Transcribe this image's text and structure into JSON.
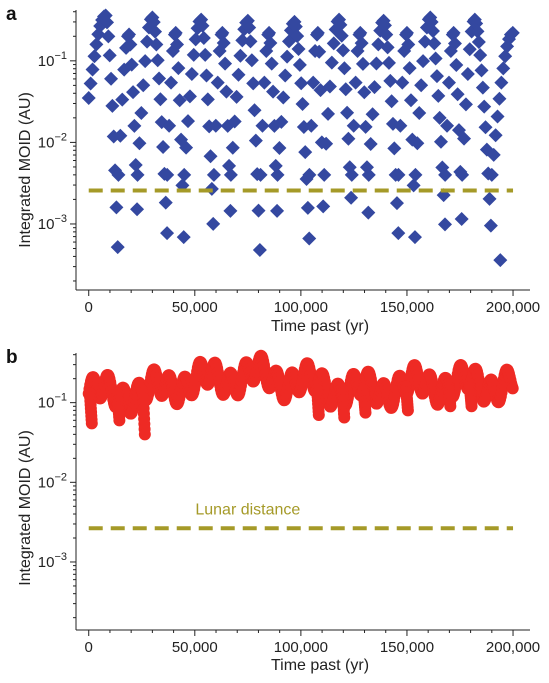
{
  "colors": {
    "panel_a_series": "#3448a0",
    "panel_b_series": "#ee2a24",
    "lunar_line": "#a59a28",
    "axis": "#222222"
  },
  "chart_data": [
    {
      "panel_letter": "a",
      "type": "scatter",
      "xlabel": "Time past (yr)",
      "ylabel": "Integrated MOID (AU)",
      "xlim": [
        -6000,
        208000
      ],
      "ylim": [
        0.000155,
        0.42
      ],
      "y_scale": "log",
      "x_ticks": [
        0,
        50000,
        100000,
        150000,
        200000
      ],
      "x_tick_labels": [
        "0",
        "50,000",
        "100,000",
        "150,000",
        "200,000"
      ],
      "y_ticks": [
        0.001,
        0.01,
        0.1
      ],
      "y_tick_labels": [
        {
          "base": "10",
          "exp": "−3"
        },
        {
          "base": "10",
          "exp": "−2"
        },
        {
          "base": "10",
          "exp": "−1"
        }
      ],
      "marker": "diamond",
      "lunar_distance": 0.00257,
      "lunar_label": "",
      "cycles": [
        {
          "start": 0,
          "peak_time": 8000,
          "peak": 0.36,
          "min_time": 14000,
          "min": 0.00028
        },
        {
          "start": 14000,
          "peak_time": 19000,
          "peak": 0.21,
          "min_time": 23000,
          "min": 0.00095
        },
        {
          "start": 23000,
          "peak_time": 30000,
          "peak": 0.34,
          "min_time": 37000,
          "min": 0.0007
        },
        {
          "start": 37000,
          "peak_time": 41000,
          "peak": 0.22,
          "min_time": 45000,
          "min": 0.0004
        },
        {
          "start": 45000,
          "peak_time": 53000,
          "peak": 0.32,
          "min_time": 59000,
          "min": 0.00058
        },
        {
          "start": 59000,
          "peak_time": 63000,
          "peak": 0.22,
          "min_time": 67000,
          "min": 0.0009
        },
        {
          "start": 67000,
          "peak_time": 75000,
          "peak": 0.31,
          "min_time": 81000,
          "min": 0.00026
        },
        {
          "start": 81000,
          "peak_time": 85000,
          "peak": 0.22,
          "min_time": 89000,
          "min": 0.0009
        },
        {
          "start": 89000,
          "peak_time": 97000,
          "peak": 0.3,
          "min_time": 104000,
          "min": 0.0006
        },
        {
          "start": 104000,
          "peak_time": 108000,
          "peak": 0.22,
          "min_time": 111000,
          "min": 0.00034
        },
        {
          "start": 111000,
          "peak_time": 118000,
          "peak": 0.32,
          "min_time": 124000,
          "min": 0.0013
        },
        {
          "start": 124000,
          "peak_time": 128000,
          "peak": 0.22,
          "min_time": 132000,
          "min": 0.00085
        },
        {
          "start": 132000,
          "peak_time": 139000,
          "peak": 0.31,
          "min_time": 146000,
          "min": 0.0007
        },
        {
          "start": 146000,
          "peak_time": 150000,
          "peak": 0.22,
          "min_time": 154000,
          "min": 0.0004
        },
        {
          "start": 154000,
          "peak_time": 161000,
          "peak": 0.34,
          "min_time": 168000,
          "min": 0.0009
        },
        {
          "start": 168000,
          "peak_time": 172000,
          "peak": 0.22,
          "min_time": 176000,
          "min": 0.0007
        },
        {
          "start": 176000,
          "peak_time": 182000,
          "peak": 0.32,
          "min_time": 190000,
          "min": 0.00055
        },
        {
          "start": 190000,
          "peak_time": 200000,
          "peak": 0.22,
          "min_time": 194000,
          "min": 0.00036
        }
      ]
    },
    {
      "panel_letter": "b",
      "type": "scatter",
      "xlabel": "Time past (yr)",
      "ylabel": "Integrated MOID (AU)",
      "xlim": [
        -6000,
        208000
      ],
      "ylim": [
        0.00014,
        0.42
      ],
      "y_scale": "log",
      "x_ticks": [
        0,
        50000,
        100000,
        150000,
        200000
      ],
      "x_tick_labels": [
        "0",
        "50,000",
        "100,000",
        "150,000",
        "200,000"
      ],
      "y_ticks": [
        0.001,
        0.01,
        0.1
      ],
      "y_tick_labels": [
        {
          "base": "10",
          "exp": "−3"
        },
        {
          "base": "10",
          "exp": "−2"
        },
        {
          "base": "10",
          "exp": "−1"
        }
      ],
      "marker": "circle",
      "lunar_distance": 0.00265,
      "lunar_label": "Lunar distance",
      "lunar_label_x": 75000,
      "trend": [
        {
          "x": 0,
          "y": 0.13
        },
        {
          "x": 25000,
          "y": 0.13
        },
        {
          "x": 40000,
          "y": 0.17
        },
        {
          "x": 60000,
          "y": 0.2
        },
        {
          "x": 80000,
          "y": 0.22
        },
        {
          "x": 100000,
          "y": 0.18
        },
        {
          "x": 110000,
          "y": 0.16
        },
        {
          "x": 125000,
          "y": 0.14
        },
        {
          "x": 140000,
          "y": 0.15
        },
        {
          "x": 160000,
          "y": 0.17
        },
        {
          "x": 180000,
          "y": 0.17
        },
        {
          "x": 200000,
          "y": 0.17
        }
      ],
      "dips": [
        {
          "x": 1000,
          "y": 0.055
        },
        {
          "x": 14000,
          "y": 0.06
        },
        {
          "x": 26000,
          "y": 0.04
        },
        {
          "x": 108000,
          "y": 0.07
        },
        {
          "x": 120000,
          "y": 0.065
        },
        {
          "x": 130000,
          "y": 0.075
        },
        {
          "x": 150000,
          "y": 0.08
        },
        {
          "x": 170000,
          "y": 0.09
        },
        {
          "x": 180000,
          "y": 0.09
        }
      ]
    }
  ]
}
